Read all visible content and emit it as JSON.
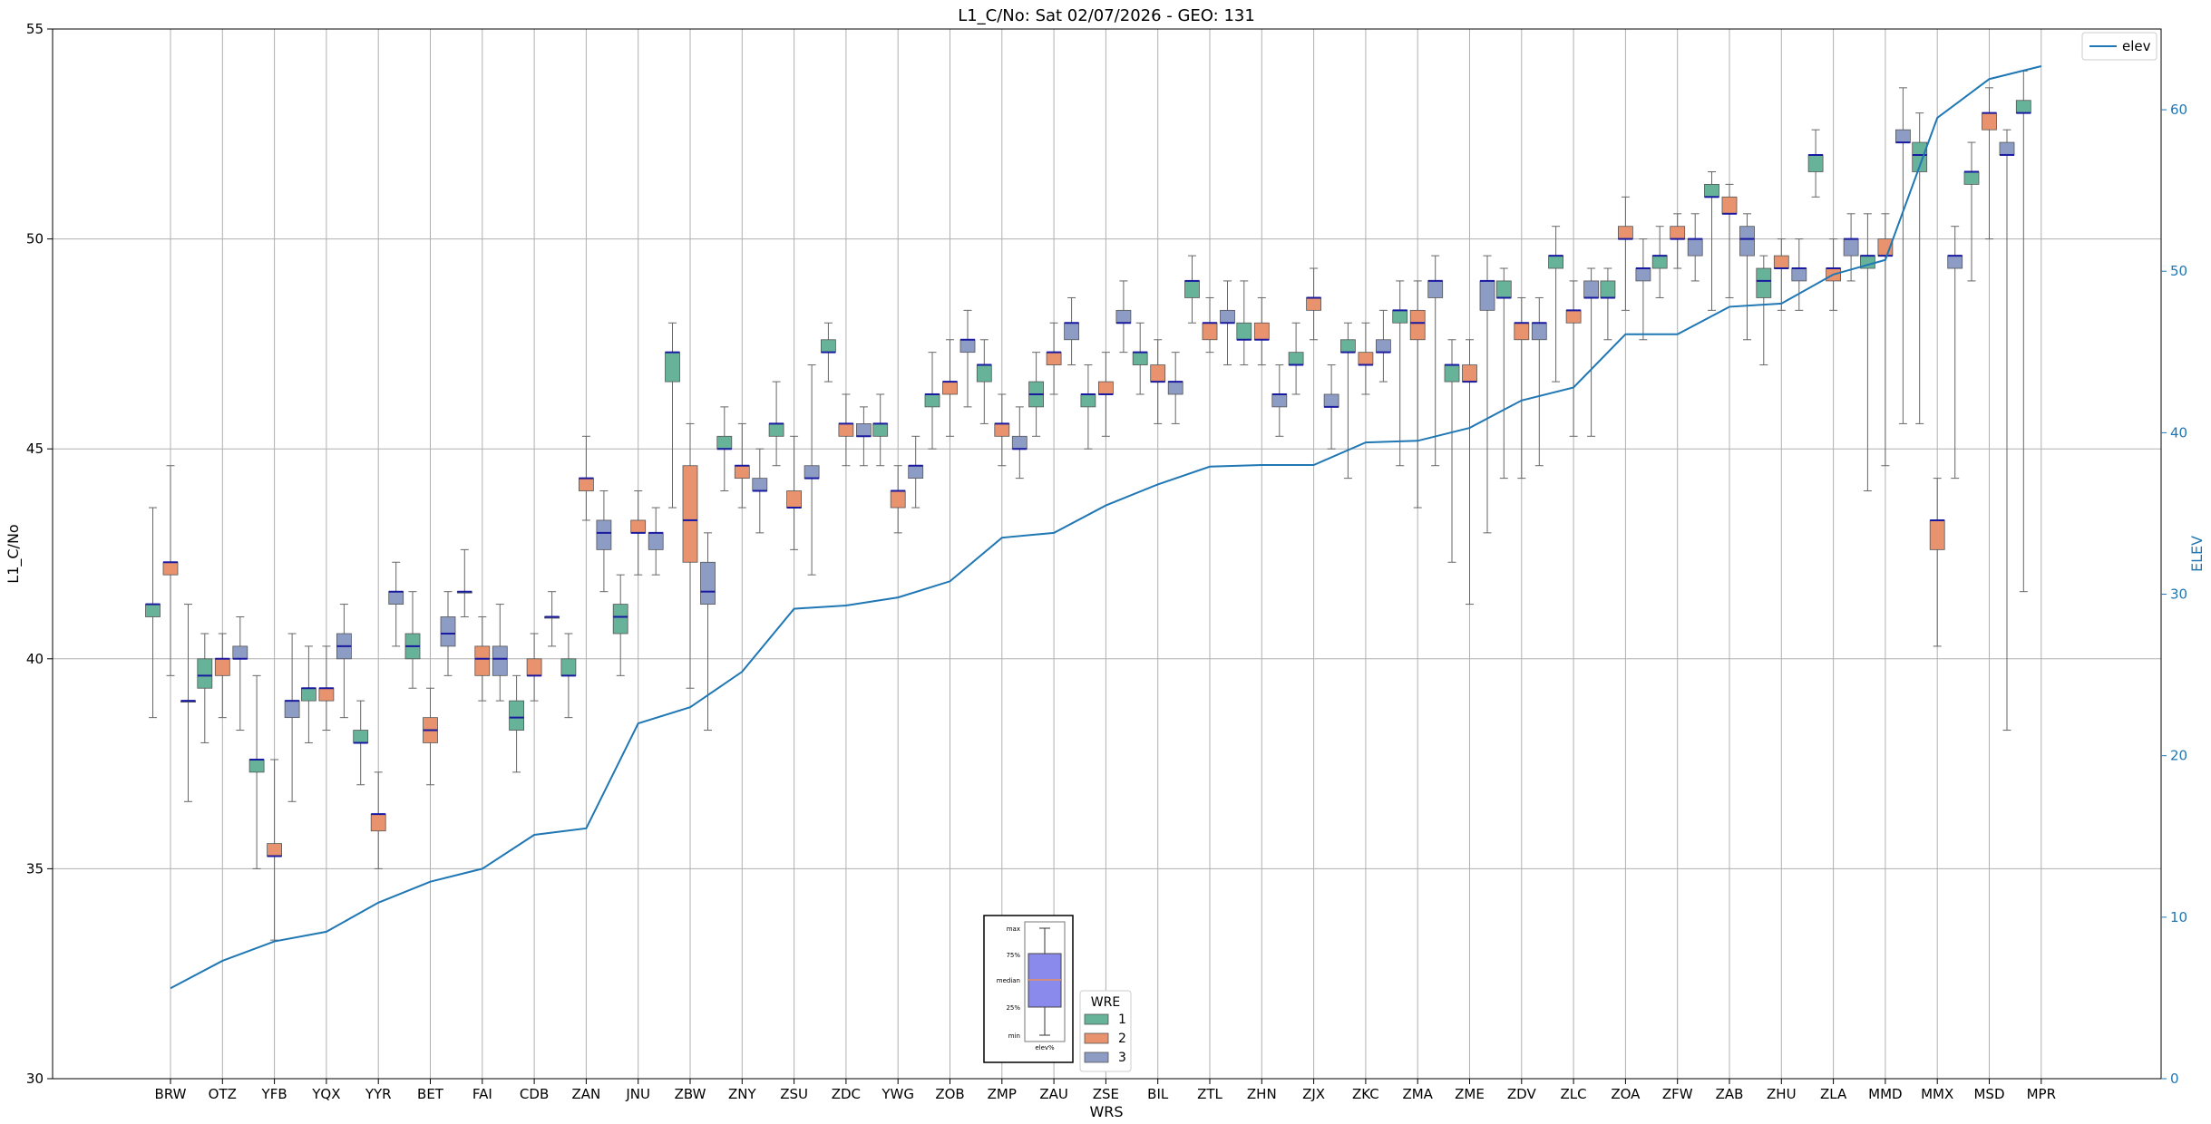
{
  "chart_data": {
    "type": "box",
    "title": "L1_C/No: Sat 02/07/2026 - GEO: 131",
    "xlabel": "WRS",
    "ylabel": "L1_C/No",
    "ylabel_right": "ELEV",
    "ylim": [
      30,
      55
    ],
    "ylim_right": [
      0,
      65
    ],
    "yticks": [
      30,
      35,
      40,
      45,
      50,
      55
    ],
    "yticks_right": [
      0,
      10,
      20,
      30,
      40,
      50,
      60
    ],
    "grid": true,
    "categories": [
      "BRW",
      "OTZ",
      "YFB",
      "YQX",
      "YYR",
      "BET",
      "FAI",
      "CDB",
      "ZAN",
      "JNU",
      "ZBW",
      "ZNY",
      "ZSU",
      "ZDC",
      "YWG",
      "ZOB",
      "ZMP",
      "ZAU",
      "ZSE",
      "BIL",
      "ZTL",
      "ZHN",
      "ZJX",
      "ZKC",
      "ZMA",
      "ZME",
      "ZDV",
      "ZLC",
      "ZOA",
      "ZFW",
      "ZAB",
      "ZHU",
      "ZLA",
      "MMD",
      "MMX",
      "MSD",
      "MPR"
    ],
    "wre_colors": {
      "1": "#66b39a",
      "2": "#e8926e",
      "3": "#8d9cc5"
    },
    "median_color": "#1a1aa0",
    "elev_color": "#1f77b4",
    "boxes": [
      {
        "site": "BRW",
        "wre": 1,
        "min": 38.6,
        "q1": 41.0,
        "median": 41.3,
        "q3": 41.3,
        "max": 43.6
      },
      {
        "site": "BRW",
        "wre": 2,
        "min": 39.6,
        "q1": 42.0,
        "median": 42.3,
        "q3": 42.3,
        "max": 44.6
      },
      {
        "site": "BRW",
        "wre": 3,
        "min": 36.6,
        "q1": 39.0,
        "median": 39.0,
        "q3": 39.0,
        "max": 41.3
      },
      {
        "site": "OTZ",
        "wre": 1,
        "min": 38.0,
        "q1": 39.3,
        "median": 39.6,
        "q3": 40.0,
        "max": 40.6
      },
      {
        "site": "OTZ",
        "wre": 2,
        "min": 38.6,
        "q1": 39.6,
        "median": 40.0,
        "q3": 40.0,
        "max": 40.6
      },
      {
        "site": "OTZ",
        "wre": 3,
        "min": 38.3,
        "q1": 40.0,
        "median": 40.0,
        "q3": 40.3,
        "max": 41.0
      },
      {
        "site": "YFB",
        "wre": 1,
        "min": 35.0,
        "q1": 37.3,
        "median": 37.6,
        "q3": 37.6,
        "max": 39.6
      },
      {
        "site": "YFB",
        "wre": 2,
        "min": 33.3,
        "q1": 35.3,
        "median": 35.3,
        "q3": 35.6,
        "max": 37.6
      },
      {
        "site": "YFB",
        "wre": 3,
        "min": 36.6,
        "q1": 38.6,
        "median": 39.0,
        "q3": 39.0,
        "max": 40.6
      },
      {
        "site": "YQX",
        "wre": 1,
        "min": 38.0,
        "q1": 39.0,
        "median": 39.3,
        "q3": 39.3,
        "max": 40.3
      },
      {
        "site": "YQX",
        "wre": 2,
        "min": 38.3,
        "q1": 39.0,
        "median": 39.3,
        "q3": 39.3,
        "max": 40.3
      },
      {
        "site": "YQX",
        "wre": 3,
        "min": 38.6,
        "q1": 40.0,
        "median": 40.3,
        "q3": 40.6,
        "max": 41.3
      },
      {
        "site": "YYR",
        "wre": 1,
        "min": 37.0,
        "q1": 38.0,
        "median": 38.0,
        "q3": 38.3,
        "max": 39.0
      },
      {
        "site": "YYR",
        "wre": 2,
        "min": 35.0,
        "q1": 35.9,
        "median": 36.3,
        "q3": 36.3,
        "max": 37.3
      },
      {
        "site": "YYR",
        "wre": 3,
        "min": 40.3,
        "q1": 41.3,
        "median": 41.6,
        "q3": 41.6,
        "max": 42.3
      },
      {
        "site": "BET",
        "wre": 1,
        "min": 39.3,
        "q1": 40.0,
        "median": 40.3,
        "q3": 40.6,
        "max": 41.6
      },
      {
        "site": "BET",
        "wre": 2,
        "min": 37.0,
        "q1": 38.0,
        "median": 38.3,
        "q3": 38.6,
        "max": 39.3
      },
      {
        "site": "BET",
        "wre": 3,
        "min": 39.6,
        "q1": 40.3,
        "median": 40.6,
        "q3": 41.0,
        "max": 41.6
      },
      {
        "site": "FAI",
        "wre": 1,
        "min": 41.0,
        "q1": 41.6,
        "median": 41.6,
        "q3": 41.6,
        "max": 42.6
      },
      {
        "site": "FAI",
        "wre": 2,
        "min": 39.0,
        "q1": 39.6,
        "median": 40.0,
        "q3": 40.3,
        "max": 41.0
      },
      {
        "site": "FAI",
        "wre": 3,
        "min": 39.0,
        "q1": 39.6,
        "median": 40.0,
        "q3": 40.3,
        "max": 41.3
      },
      {
        "site": "CDB",
        "wre": 1,
        "min": 37.3,
        "q1": 38.3,
        "median": 38.6,
        "q3": 39.0,
        "max": 39.6
      },
      {
        "site": "CDB",
        "wre": 2,
        "min": 39.0,
        "q1": 39.6,
        "median": 39.6,
        "q3": 40.0,
        "max": 40.6
      },
      {
        "site": "CDB",
        "wre": 3,
        "min": 40.3,
        "q1": 41.0,
        "median": 41.0,
        "q3": 41.0,
        "max": 41.6
      },
      {
        "site": "ZAN",
        "wre": 1,
        "min": 38.6,
        "q1": 39.6,
        "median": 39.6,
        "q3": 40.0,
        "max": 40.6
      },
      {
        "site": "ZAN",
        "wre": 2,
        "min": 43.3,
        "q1": 44.0,
        "median": 44.3,
        "q3": 44.3,
        "max": 45.3
      },
      {
        "site": "ZAN",
        "wre": 3,
        "min": 41.6,
        "q1": 42.6,
        "median": 43.0,
        "q3": 43.3,
        "max": 44.0
      },
      {
        "site": "JNU",
        "wre": 1,
        "min": 39.6,
        "q1": 40.6,
        "median": 41.0,
        "q3": 41.3,
        "max": 42.0
      },
      {
        "site": "JNU",
        "wre": 2,
        "min": 42.0,
        "q1": 43.0,
        "median": 43.0,
        "q3": 43.3,
        "max": 44.0
      },
      {
        "site": "JNU",
        "wre": 3,
        "min": 42.0,
        "q1": 42.6,
        "median": 43.0,
        "q3": 43.0,
        "max": 43.6
      },
      {
        "site": "ZBW",
        "wre": 1,
        "min": 43.6,
        "q1": 46.6,
        "median": 47.3,
        "q3": 47.3,
        "max": 48.0
      },
      {
        "site": "ZBW",
        "wre": 2,
        "min": 39.3,
        "q1": 42.3,
        "median": 43.3,
        "q3": 44.6,
        "max": 45.6
      },
      {
        "site": "ZBW",
        "wre": 3,
        "min": 38.3,
        "q1": 41.3,
        "median": 41.6,
        "q3": 42.3,
        "max": 43.0
      },
      {
        "site": "ZNY",
        "wre": 1,
        "min": 44.0,
        "q1": 45.0,
        "median": 45.0,
        "q3": 45.3,
        "max": 46.0
      },
      {
        "site": "ZNY",
        "wre": 2,
        "min": 43.6,
        "q1": 44.3,
        "median": 44.6,
        "q3": 44.6,
        "max": 45.6
      },
      {
        "site": "ZNY",
        "wre": 3,
        "min": 43.0,
        "q1": 44.0,
        "median": 44.0,
        "q3": 44.3,
        "max": 45.0
      },
      {
        "site": "ZSU",
        "wre": 1,
        "min": 44.6,
        "q1": 45.3,
        "median": 45.6,
        "q3": 45.6,
        "max": 46.6
      },
      {
        "site": "ZSU",
        "wre": 2,
        "min": 42.6,
        "q1": 43.6,
        "median": 43.6,
        "q3": 44.0,
        "max": 45.3
      },
      {
        "site": "ZSU",
        "wre": 3,
        "min": 42.0,
        "q1": 44.3,
        "median": 44.3,
        "q3": 44.6,
        "max": 47.0
      },
      {
        "site": "ZDC",
        "wre": 1,
        "min": 46.6,
        "q1": 47.3,
        "median": 47.3,
        "q3": 47.6,
        "max": 48.0
      },
      {
        "site": "ZDC",
        "wre": 2,
        "min": 44.6,
        "q1": 45.3,
        "median": 45.6,
        "q3": 45.6,
        "max": 46.3
      },
      {
        "site": "ZDC",
        "wre": 3,
        "min": 44.6,
        "q1": 45.3,
        "median": 45.3,
        "q3": 45.6,
        "max": 46.0
      },
      {
        "site": "YWG",
        "wre": 1,
        "min": 44.6,
        "q1": 45.3,
        "median": 45.6,
        "q3": 45.6,
        "max": 46.3
      },
      {
        "site": "YWG",
        "wre": 2,
        "min": 43.0,
        "q1": 43.6,
        "median": 44.0,
        "q3": 44.0,
        "max": 44.6
      },
      {
        "site": "YWG",
        "wre": 3,
        "min": 43.6,
        "q1": 44.3,
        "median": 44.6,
        "q3": 44.6,
        "max": 45.3
      },
      {
        "site": "ZOB",
        "wre": 1,
        "min": 45.0,
        "q1": 46.0,
        "median": 46.3,
        "q3": 46.3,
        "max": 47.3
      },
      {
        "site": "ZOB",
        "wre": 2,
        "min": 45.3,
        "q1": 46.3,
        "median": 46.6,
        "q3": 46.6,
        "max": 47.6
      },
      {
        "site": "ZOB",
        "wre": 3,
        "min": 46.0,
        "q1": 47.3,
        "median": 47.6,
        "q3": 47.6,
        "max": 48.3
      },
      {
        "site": "ZMP",
        "wre": 1,
        "min": 45.6,
        "q1": 46.6,
        "median": 47.0,
        "q3": 47.0,
        "max": 47.6
      },
      {
        "site": "ZMP",
        "wre": 2,
        "min": 44.6,
        "q1": 45.3,
        "median": 45.6,
        "q3": 45.6,
        "max": 46.3
      },
      {
        "site": "ZMP",
        "wre": 3,
        "min": 44.3,
        "q1": 45.0,
        "median": 45.0,
        "q3": 45.3,
        "max": 46.0
      },
      {
        "site": "ZAU",
        "wre": 1,
        "min": 45.3,
        "q1": 46.0,
        "median": 46.3,
        "q3": 46.6,
        "max": 47.3
      },
      {
        "site": "ZAU",
        "wre": 2,
        "min": 46.3,
        "q1": 47.0,
        "median": 47.3,
        "q3": 47.3,
        "max": 48.0
      },
      {
        "site": "ZAU",
        "wre": 3,
        "min": 47.0,
        "q1": 47.6,
        "median": 48.0,
        "q3": 48.0,
        "max": 48.6
      },
      {
        "site": "ZSE",
        "wre": 1,
        "min": 45.0,
        "q1": 46.0,
        "median": 46.3,
        "q3": 46.3,
        "max": 47.0
      },
      {
        "site": "ZSE",
        "wre": 2,
        "min": 45.3,
        "q1": 46.3,
        "median": 46.3,
        "q3": 46.6,
        "max": 47.3
      },
      {
        "site": "ZSE",
        "wre": 3,
        "min": 47.3,
        "q1": 48.0,
        "median": 48.0,
        "q3": 48.3,
        "max": 49.0
      },
      {
        "site": "BIL",
        "wre": 1,
        "min": 46.3,
        "q1": 47.0,
        "median": 47.3,
        "q3": 47.3,
        "max": 48.0
      },
      {
        "site": "BIL",
        "wre": 2,
        "min": 45.6,
        "q1": 46.6,
        "median": 46.6,
        "q3": 47.0,
        "max": 47.6
      },
      {
        "site": "BIL",
        "wre": 3,
        "min": 45.6,
        "q1": 46.3,
        "median": 46.6,
        "q3": 46.6,
        "max": 47.3
      },
      {
        "site": "ZTL",
        "wre": 1,
        "min": 48.0,
        "q1": 48.6,
        "median": 49.0,
        "q3": 49.0,
        "max": 49.6
      },
      {
        "site": "ZTL",
        "wre": 2,
        "min": 47.3,
        "q1": 47.6,
        "median": 48.0,
        "q3": 48.0,
        "max": 48.6
      },
      {
        "site": "ZTL",
        "wre": 3,
        "min": 47.0,
        "q1": 48.0,
        "median": 48.0,
        "q3": 48.3,
        "max": 49.0
      },
      {
        "site": "ZHN",
        "wre": 1,
        "min": 47.0,
        "q1": 47.6,
        "median": 47.6,
        "q3": 48.0,
        "max": 49.0
      },
      {
        "site": "ZHN",
        "wre": 2,
        "min": 47.0,
        "q1": 47.6,
        "median": 47.6,
        "q3": 48.0,
        "max": 48.6
      },
      {
        "site": "ZHN",
        "wre": 3,
        "min": 45.3,
        "q1": 46.0,
        "median": 46.3,
        "q3": 46.3,
        "max": 47.0
      },
      {
        "site": "ZJX",
        "wre": 1,
        "min": 46.3,
        "q1": 47.0,
        "median": 47.0,
        "q3": 47.3,
        "max": 48.0
      },
      {
        "site": "ZJX",
        "wre": 2,
        "min": 47.6,
        "q1": 48.3,
        "median": 48.6,
        "q3": 48.6,
        "max": 49.3
      },
      {
        "site": "ZJX",
        "wre": 3,
        "min": 45.0,
        "q1": 46.0,
        "median": 46.0,
        "q3": 46.3,
        "max": 47.0
      },
      {
        "site": "ZKC",
        "wre": 1,
        "min": 44.3,
        "q1": 47.3,
        "median": 47.3,
        "q3": 47.6,
        "max": 48.0
      },
      {
        "site": "ZKC",
        "wre": 2,
        "min": 46.3,
        "q1": 47.0,
        "median": 47.0,
        "q3": 47.3,
        "max": 48.0
      },
      {
        "site": "ZKC",
        "wre": 3,
        "min": 46.6,
        "q1": 47.3,
        "median": 47.3,
        "q3": 47.6,
        "max": 48.3
      },
      {
        "site": "ZMA",
        "wre": 1,
        "min": 44.6,
        "q1": 48.0,
        "median": 48.3,
        "q3": 48.3,
        "max": 49.0
      },
      {
        "site": "ZMA",
        "wre": 2,
        "min": 43.6,
        "q1": 47.6,
        "median": 48.0,
        "q3": 48.3,
        "max": 49.0
      },
      {
        "site": "ZMA",
        "wre": 3,
        "min": 44.6,
        "q1": 48.6,
        "median": 49.0,
        "q3": 49.0,
        "max": 49.6
      },
      {
        "site": "ZME",
        "wre": 1,
        "min": 42.3,
        "q1": 46.6,
        "median": 47.0,
        "q3": 47.0,
        "max": 47.6
      },
      {
        "site": "ZME",
        "wre": 2,
        "min": 41.3,
        "q1": 46.6,
        "median": 46.6,
        "q3": 47.0,
        "max": 47.6
      },
      {
        "site": "ZME",
        "wre": 3,
        "min": 43.0,
        "q1": 48.3,
        "median": 49.0,
        "q3": 49.0,
        "max": 49.6
      },
      {
        "site": "ZDV",
        "wre": 1,
        "min": 44.3,
        "q1": 48.6,
        "median": 48.6,
        "q3": 49.0,
        "max": 49.3
      },
      {
        "site": "ZDV",
        "wre": 2,
        "min": 44.3,
        "q1": 47.6,
        "median": 48.0,
        "q3": 48.0,
        "max": 48.6
      },
      {
        "site": "ZDV",
        "wre": 3,
        "min": 44.6,
        "q1": 47.6,
        "median": 48.0,
        "q3": 48.0,
        "max": 48.6
      },
      {
        "site": "ZLC",
        "wre": 1,
        "min": 46.6,
        "q1": 49.3,
        "median": 49.6,
        "q3": 49.6,
        "max": 50.3
      },
      {
        "site": "ZLC",
        "wre": 2,
        "min": 45.3,
        "q1": 48.0,
        "median": 48.3,
        "q3": 48.3,
        "max": 49.0
      },
      {
        "site": "ZLC",
        "wre": 3,
        "min": 45.3,
        "q1": 48.6,
        "median": 48.6,
        "q3": 49.0,
        "max": 49.3
      },
      {
        "site": "ZOA",
        "wre": 1,
        "min": 47.6,
        "q1": 48.6,
        "median": 48.6,
        "q3": 49.0,
        "max": 49.3
      },
      {
        "site": "ZOA",
        "wre": 2,
        "min": 48.3,
        "q1": 50.0,
        "median": 50.0,
        "q3": 50.3,
        "max": 51.0
      },
      {
        "site": "ZOA",
        "wre": 3,
        "min": 47.6,
        "q1": 49.0,
        "median": 49.3,
        "q3": 49.3,
        "max": 50.0
      },
      {
        "site": "ZFW",
        "wre": 1,
        "min": 48.6,
        "q1": 49.3,
        "median": 49.6,
        "q3": 49.6,
        "max": 50.3
      },
      {
        "site": "ZFW",
        "wre": 2,
        "min": 49.3,
        "q1": 50.0,
        "median": 50.0,
        "q3": 50.3,
        "max": 50.6
      },
      {
        "site": "ZFW",
        "wre": 3,
        "min": 49.0,
        "q1": 49.6,
        "median": 50.0,
        "q3": 50.0,
        "max": 50.6
      },
      {
        "site": "ZAB",
        "wre": 1,
        "min": 48.3,
        "q1": 51.0,
        "median": 51.0,
        "q3": 51.3,
        "max": 51.6
      },
      {
        "site": "ZAB",
        "wre": 2,
        "min": 48.6,
        "q1": 50.6,
        "median": 50.6,
        "q3": 51.0,
        "max": 51.3
      },
      {
        "site": "ZAB",
        "wre": 3,
        "min": 47.6,
        "q1": 49.6,
        "median": 50.0,
        "q3": 50.3,
        "max": 50.6
      },
      {
        "site": "ZHU",
        "wre": 1,
        "min": 47.0,
        "q1": 48.6,
        "median": 49.0,
        "q3": 49.3,
        "max": 49.6
      },
      {
        "site": "ZHU",
        "wre": 2,
        "min": 48.3,
        "q1": 49.3,
        "median": 49.3,
        "q3": 49.6,
        "max": 50.0
      },
      {
        "site": "ZHU",
        "wre": 3,
        "min": 48.3,
        "q1": 49.0,
        "median": 49.3,
        "q3": 49.3,
        "max": 50.0
      },
      {
        "site": "ZLA",
        "wre": 1,
        "min": 51.0,
        "q1": 51.6,
        "median": 52.0,
        "q3": 52.0,
        "max": 52.6
      },
      {
        "site": "ZLA",
        "wre": 2,
        "min": 48.3,
        "q1": 49.0,
        "median": 49.3,
        "q3": 49.3,
        "max": 50.0
      },
      {
        "site": "ZLA",
        "wre": 3,
        "min": 49.0,
        "q1": 49.6,
        "median": 50.0,
        "q3": 50.0,
        "max": 50.6
      },
      {
        "site": "MMD",
        "wre": 1,
        "min": 44.0,
        "q1": 49.3,
        "median": 49.6,
        "q3": 49.6,
        "max": 50.6
      },
      {
        "site": "MMD",
        "wre": 2,
        "min": 44.6,
        "q1": 49.6,
        "median": 49.6,
        "q3": 50.0,
        "max": 50.6
      },
      {
        "site": "MMD",
        "wre": 3,
        "min": 45.6,
        "q1": 52.3,
        "median": 52.3,
        "q3": 52.6,
        "max": 53.6
      },
      {
        "site": "MMX",
        "wre": 1,
        "min": 45.6,
        "q1": 51.6,
        "median": 52.0,
        "q3": 52.3,
        "max": 53.0
      },
      {
        "site": "MMX",
        "wre": 2,
        "min": 40.3,
        "q1": 42.6,
        "median": 43.3,
        "q3": 43.3,
        "max": 44.3
      },
      {
        "site": "MMX",
        "wre": 3,
        "min": 44.3,
        "q1": 49.3,
        "median": 49.6,
        "q3": 49.6,
        "max": 50.3
      },
      {
        "site": "MSD",
        "wre": 1,
        "min": 49.0,
        "q1": 51.3,
        "median": 51.6,
        "q3": 51.6,
        "max": 52.3
      },
      {
        "site": "MSD",
        "wre": 2,
        "min": 50.0,
        "q1": 52.6,
        "median": 53.0,
        "q3": 53.0,
        "max": 53.6
      },
      {
        "site": "MSD",
        "wre": 3,
        "min": 38.3,
        "q1": 52.0,
        "median": 52.0,
        "q3": 52.3,
        "max": 52.6
      },
      {
        "site": "MPR",
        "wre": 1,
        "min": 41.6,
        "q1": 53.0,
        "median": 53.0,
        "q3": 53.3,
        "max": 54.0
      }
    ],
    "series": [
      {
        "name": "elev",
        "axis": "right",
        "values": [
          5.6,
          7.3,
          8.5,
          9.1,
          10.9,
          12.2,
          13.0,
          15.1,
          15.5,
          22.0,
          23.0,
          25.2,
          29.1,
          29.3,
          29.8,
          30.8,
          33.5,
          33.8,
          35.5,
          36.8,
          37.9,
          38.0,
          38.0,
          39.4,
          39.5,
          40.3,
          42.0,
          42.8,
          46.1,
          46.1,
          47.8,
          48.0,
          49.8,
          50.7,
          59.5,
          61.9,
          62.7
        ]
      }
    ],
    "legend_elev": {
      "label": "elev",
      "placement": "top-right"
    },
    "legend_wre": {
      "title": "WRE",
      "entries": [
        "1",
        "2",
        "3"
      ],
      "placement": "bottom-center"
    },
    "inset_box_labels": [
      "max",
      "75%",
      "median",
      "25%",
      "min",
      "elev%"
    ]
  }
}
